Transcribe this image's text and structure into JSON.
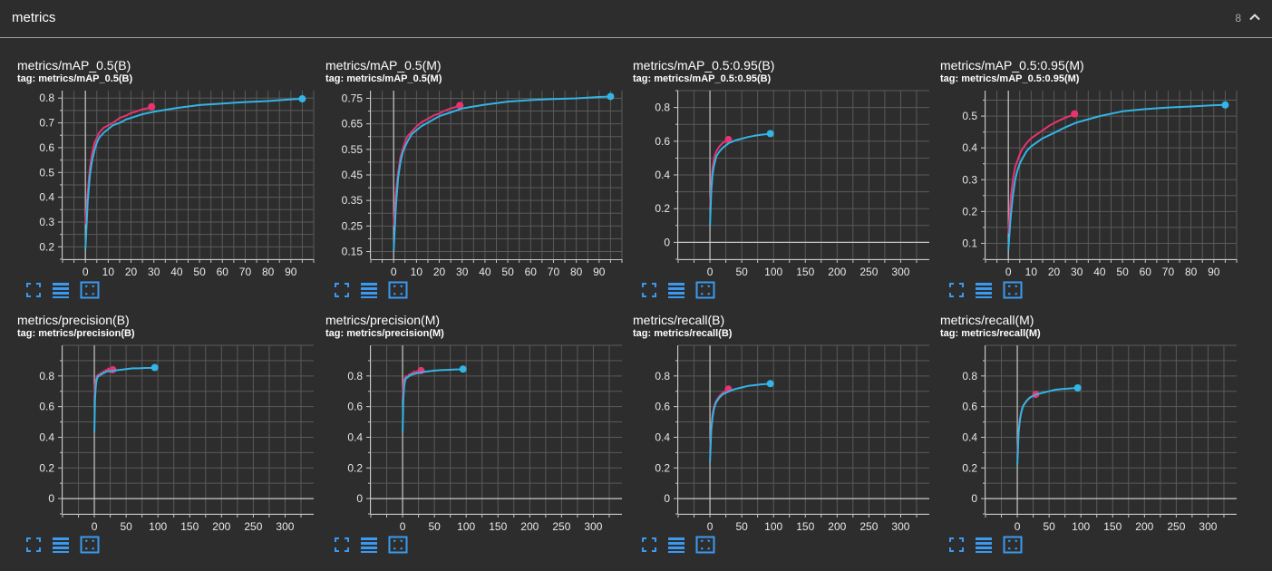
{
  "header": {
    "title": "metrics",
    "count": "8",
    "collapse_icon": "chevron-up-icon"
  },
  "colors": {
    "background": "#2d2d2d",
    "orange_run": "#e8336f",
    "blue_run": "#33b5e5",
    "grid": "#5a5a5a",
    "axis": "#c8c8c8",
    "button": "#3b9af0"
  },
  "cards": [
    {
      "title": "metrics/mAP_0.5(B)",
      "tag": "tag: metrics/mAP_0.5(B)"
    },
    {
      "title": "metrics/mAP_0.5(M)",
      "tag": "tag: metrics/mAP_0.5(M)"
    },
    {
      "title": "metrics/mAP_0.5:0.95(B)",
      "tag": "tag: metrics/mAP_0.5:0.95(B)"
    },
    {
      "title": "metrics/mAP_0.5:0.95(M)",
      "tag": "tag: metrics/mAP_0.5:0.95(M)"
    },
    {
      "title": "metrics/precision(B)",
      "tag": "tag: metrics/precision(B)"
    },
    {
      "title": "metrics/precision(M)",
      "tag": "tag: metrics/precision(M)"
    },
    {
      "title": "metrics/recall(B)",
      "tag": "tag: metrics/recall(B)"
    },
    {
      "title": "metrics/recall(M)",
      "tag": "tag: metrics/recall(M)"
    }
  ],
  "buttons": {
    "fullscreen_icon": "fullscreen-icon",
    "data_table_icon": "list-icon",
    "fit_domain_icon": "fit-domain-icon"
  },
  "chart_data": [
    {
      "type": "line",
      "title": "metrics/mAP_0.5(B)",
      "xlim": [
        -10,
        100
      ],
      "ylim": [
        0.15,
        0.83
      ],
      "x_ticks": [
        0,
        10,
        20,
        30,
        40,
        50,
        60,
        70,
        80,
        90
      ],
      "y_ticks": [
        0.2,
        0.3,
        0.4,
        0.5,
        0.6,
        0.7,
        0.8
      ],
      "series": [
        {
          "color": "#e8336f",
          "x": [
            0,
            1,
            2,
            3,
            4,
            5,
            6,
            8,
            10,
            12,
            15,
            18,
            20,
            22,
            25,
            28,
            29
          ],
          "y": [
            0.29,
            0.42,
            0.52,
            0.58,
            0.62,
            0.64,
            0.66,
            0.68,
            0.69,
            0.7,
            0.72,
            0.73,
            0.74,
            0.745,
            0.755,
            0.76,
            0.765
          ]
        },
        {
          "color": "#33b5e5",
          "x": [
            0,
            1,
            2,
            3,
            4,
            5,
            6,
            8,
            10,
            12,
            15,
            18,
            20,
            25,
            30,
            35,
            40,
            50,
            60,
            70,
            80,
            90,
            95
          ],
          "y": [
            0.19,
            0.38,
            0.49,
            0.55,
            0.59,
            0.62,
            0.64,
            0.66,
            0.675,
            0.69,
            0.7,
            0.715,
            0.72,
            0.735,
            0.745,
            0.752,
            0.76,
            0.772,
            0.778,
            0.784,
            0.788,
            0.795,
            0.797
          ]
        }
      ]
    },
    {
      "type": "line",
      "title": "metrics/mAP_0.5(M)",
      "xlim": [
        -10,
        100
      ],
      "ylim": [
        0.12,
        0.78
      ],
      "x_ticks": [
        0,
        10,
        20,
        30,
        40,
        50,
        60,
        70,
        80,
        90
      ],
      "y_ticks": [
        0.15,
        0.25,
        0.35,
        0.45,
        0.55,
        0.65,
        0.75
      ],
      "series": [
        {
          "color": "#e8336f",
          "x": [
            0,
            1,
            2,
            3,
            4,
            5,
            6,
            8,
            10,
            12,
            15,
            18,
            20,
            22,
            25,
            28,
            29
          ],
          "y": [
            0.25,
            0.38,
            0.46,
            0.52,
            0.55,
            0.58,
            0.6,
            0.62,
            0.64,
            0.655,
            0.67,
            0.685,
            0.69,
            0.7,
            0.71,
            0.718,
            0.722
          ]
        },
        {
          "color": "#33b5e5",
          "x": [
            0,
            1,
            2,
            3,
            4,
            5,
            6,
            8,
            10,
            12,
            15,
            18,
            20,
            25,
            30,
            35,
            40,
            50,
            60,
            70,
            80,
            90,
            95
          ],
          "y": [
            0.15,
            0.33,
            0.44,
            0.5,
            0.54,
            0.56,
            0.58,
            0.61,
            0.625,
            0.64,
            0.655,
            0.67,
            0.68,
            0.695,
            0.71,
            0.718,
            0.725,
            0.737,
            0.743,
            0.747,
            0.75,
            0.755,
            0.757
          ]
        }
      ]
    },
    {
      "type": "line",
      "title": "metrics/mAP_0.5:0.95(B)",
      "xlim": [
        -50,
        345
      ],
      "ylim": [
        -0.1,
        0.9
      ],
      "x_ticks": [
        0,
        50,
        100,
        150,
        200,
        250,
        300
      ],
      "y_ticks": [
        0,
        0.2,
        0.4,
        0.6,
        0.8
      ],
      "series": [
        {
          "color": "#e8336f",
          "x": [
            0,
            2,
            4,
            6,
            8,
            10,
            15,
            20,
            25,
            29
          ],
          "y": [
            0.2,
            0.35,
            0.44,
            0.49,
            0.52,
            0.54,
            0.57,
            0.59,
            0.6,
            0.61
          ]
        },
        {
          "color": "#33b5e5",
          "x": [
            0,
            2,
            4,
            6,
            8,
            10,
            15,
            20,
            30,
            40,
            50,
            60,
            70,
            80,
            90,
            95
          ],
          "y": [
            0.1,
            0.3,
            0.4,
            0.45,
            0.48,
            0.51,
            0.54,
            0.56,
            0.59,
            0.605,
            0.615,
            0.625,
            0.632,
            0.638,
            0.642,
            0.645
          ]
        }
      ]
    },
    {
      "type": "line",
      "title": "metrics/mAP_0.5:0.95(M)",
      "xlim": [
        -10,
        100
      ],
      "ylim": [
        0.05,
        0.58
      ],
      "x_ticks": [
        0,
        10,
        20,
        30,
        40,
        50,
        60,
        70,
        80,
        90
      ],
      "y_ticks": [
        0.1,
        0.2,
        0.3,
        0.4,
        0.5
      ],
      "series": [
        {
          "color": "#e8336f",
          "x": [
            0,
            1,
            2,
            3,
            4,
            5,
            6,
            8,
            10,
            12,
            15,
            18,
            20,
            22,
            25,
            28,
            29
          ],
          "y": [
            0.13,
            0.24,
            0.3,
            0.34,
            0.36,
            0.38,
            0.395,
            0.415,
            0.43,
            0.44,
            0.455,
            0.47,
            0.478,
            0.485,
            0.495,
            0.503,
            0.507
          ]
        },
        {
          "color": "#33b5e5",
          "x": [
            0,
            1,
            2,
            3,
            4,
            5,
            6,
            8,
            10,
            12,
            15,
            18,
            20,
            25,
            30,
            35,
            40,
            50,
            60,
            70,
            80,
            90,
            95
          ],
          "y": [
            0.08,
            0.18,
            0.25,
            0.3,
            0.33,
            0.35,
            0.365,
            0.39,
            0.405,
            0.415,
            0.43,
            0.44,
            0.447,
            0.465,
            0.48,
            0.49,
            0.5,
            0.515,
            0.522,
            0.527,
            0.53,
            0.534,
            0.535
          ]
        }
      ]
    },
    {
      "type": "line",
      "title": "metrics/precision(B)",
      "xlim": [
        -50,
        345
      ],
      "ylim": [
        -0.1,
        1.0
      ],
      "x_ticks": [
        0,
        50,
        100,
        150,
        200,
        250,
        300
      ],
      "y_ticks": [
        0,
        0.2,
        0.4,
        0.6,
        0.8
      ],
      "series": [
        {
          "color": "#e8336f",
          "x": [
            0,
            1,
            2,
            3,
            4,
            5,
            6,
            8,
            10,
            12,
            14,
            16,
            18,
            20,
            22,
            24,
            26,
            28,
            29
          ],
          "y": [
            0.64,
            0.74,
            0.77,
            0.78,
            0.8,
            0.79,
            0.81,
            0.8,
            0.82,
            0.81,
            0.83,
            0.82,
            0.84,
            0.83,
            0.85,
            0.83,
            0.84,
            0.83,
            0.84
          ]
        },
        {
          "color": "#33b5e5",
          "x": [
            0,
            1,
            2,
            3,
            4,
            6,
            8,
            10,
            15,
            20,
            25,
            30,
            40,
            50,
            60,
            70,
            80,
            90,
            95
          ],
          "y": [
            0.43,
            0.65,
            0.72,
            0.76,
            0.78,
            0.8,
            0.8,
            0.81,
            0.82,
            0.83,
            0.83,
            0.835,
            0.84,
            0.845,
            0.85,
            0.85,
            0.852,
            0.853,
            0.855
          ]
        }
      ]
    },
    {
      "type": "line",
      "title": "metrics/precision(M)",
      "xlim": [
        -50,
        345
      ],
      "ylim": [
        -0.1,
        1.0
      ],
      "x_ticks": [
        0,
        50,
        100,
        150,
        200,
        250,
        300
      ],
      "y_ticks": [
        0,
        0.2,
        0.4,
        0.6,
        0.8
      ],
      "series": [
        {
          "color": "#e8336f",
          "x": [
            0,
            1,
            2,
            3,
            4,
            5,
            6,
            8,
            10,
            12,
            14,
            16,
            18,
            20,
            22,
            24,
            26,
            28,
            29
          ],
          "y": [
            0.64,
            0.73,
            0.77,
            0.78,
            0.79,
            0.78,
            0.8,
            0.79,
            0.81,
            0.8,
            0.82,
            0.81,
            0.83,
            0.82,
            0.83,
            0.82,
            0.84,
            0.83,
            0.835
          ]
        },
        {
          "color": "#33b5e5",
          "x": [
            0,
            1,
            2,
            3,
            4,
            6,
            8,
            10,
            15,
            20,
            25,
            30,
            40,
            50,
            60,
            70,
            80,
            90,
            95
          ],
          "y": [
            0.43,
            0.64,
            0.71,
            0.75,
            0.77,
            0.79,
            0.79,
            0.8,
            0.81,
            0.815,
            0.82,
            0.825,
            0.83,
            0.835,
            0.838,
            0.84,
            0.842,
            0.843,
            0.845
          ]
        }
      ]
    },
    {
      "type": "line",
      "title": "metrics/recall(B)",
      "xlim": [
        -50,
        345
      ],
      "ylim": [
        -0.1,
        1.0
      ],
      "x_ticks": [
        0,
        50,
        100,
        150,
        200,
        250,
        300
      ],
      "y_ticks": [
        0,
        0.2,
        0.4,
        0.6,
        0.8
      ],
      "series": [
        {
          "color": "#e8336f",
          "x": [
            0,
            2,
            4,
            6,
            8,
            10,
            15,
            20,
            25,
            29
          ],
          "y": [
            0.3,
            0.47,
            0.55,
            0.59,
            0.62,
            0.64,
            0.67,
            0.69,
            0.705,
            0.715
          ]
        },
        {
          "color": "#33b5e5",
          "x": [
            0,
            2,
            4,
            6,
            8,
            10,
            15,
            20,
            30,
            40,
            50,
            60,
            70,
            80,
            90,
            95
          ],
          "y": [
            0.24,
            0.45,
            0.53,
            0.58,
            0.61,
            0.63,
            0.66,
            0.68,
            0.7,
            0.715,
            0.725,
            0.735,
            0.74,
            0.745,
            0.748,
            0.75
          ]
        }
      ]
    },
    {
      "type": "line",
      "title": "metrics/recall(M)",
      "xlim": [
        -50,
        345
      ],
      "ylim": [
        -0.1,
        1.0
      ],
      "x_ticks": [
        0,
        50,
        100,
        150,
        200,
        250,
        300
      ],
      "y_ticks": [
        0,
        0.2,
        0.4,
        0.6,
        0.8
      ],
      "series": [
        {
          "color": "#e8336f",
          "x": [
            0,
            2,
            4,
            6,
            8,
            10,
            15,
            20,
            25,
            29
          ],
          "y": [
            0.27,
            0.44,
            0.52,
            0.56,
            0.59,
            0.61,
            0.64,
            0.66,
            0.67,
            0.68
          ]
        },
        {
          "color": "#33b5e5",
          "x": [
            0,
            2,
            4,
            6,
            8,
            10,
            15,
            20,
            30,
            40,
            50,
            60,
            70,
            80,
            90,
            95
          ],
          "y": [
            0.22,
            0.43,
            0.51,
            0.56,
            0.59,
            0.61,
            0.64,
            0.66,
            0.68,
            0.69,
            0.7,
            0.71,
            0.715,
            0.718,
            0.72,
            0.722
          ]
        }
      ]
    }
  ]
}
